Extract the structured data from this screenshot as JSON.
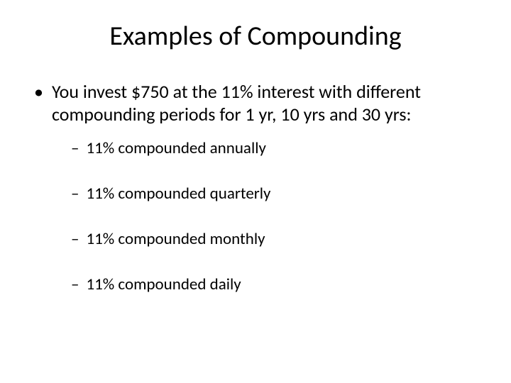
{
  "title": "Examples of Compounding",
  "bullets": {
    "level1": {
      "text": "You invest $750 at the 11% interest with different compounding periods for 1 yr, 10 yrs and 30 yrs:"
    },
    "level2": [
      {
        "text": "11% compounded annually"
      },
      {
        "text": "11% compounded quarterly"
      },
      {
        "text": "11% compounded monthly"
      },
      {
        "text": "11% compounded daily"
      }
    ]
  },
  "style": {
    "background_color": "#ffffff",
    "text_color": "#000000",
    "title_fontsize": 38,
    "body_fontsize_l1": 26,
    "body_fontsize_l2": 23,
    "font_family": "Calibri, Arial, sans-serif",
    "bullet_l1_marker": "•",
    "bullet_l2_marker": "–"
  }
}
